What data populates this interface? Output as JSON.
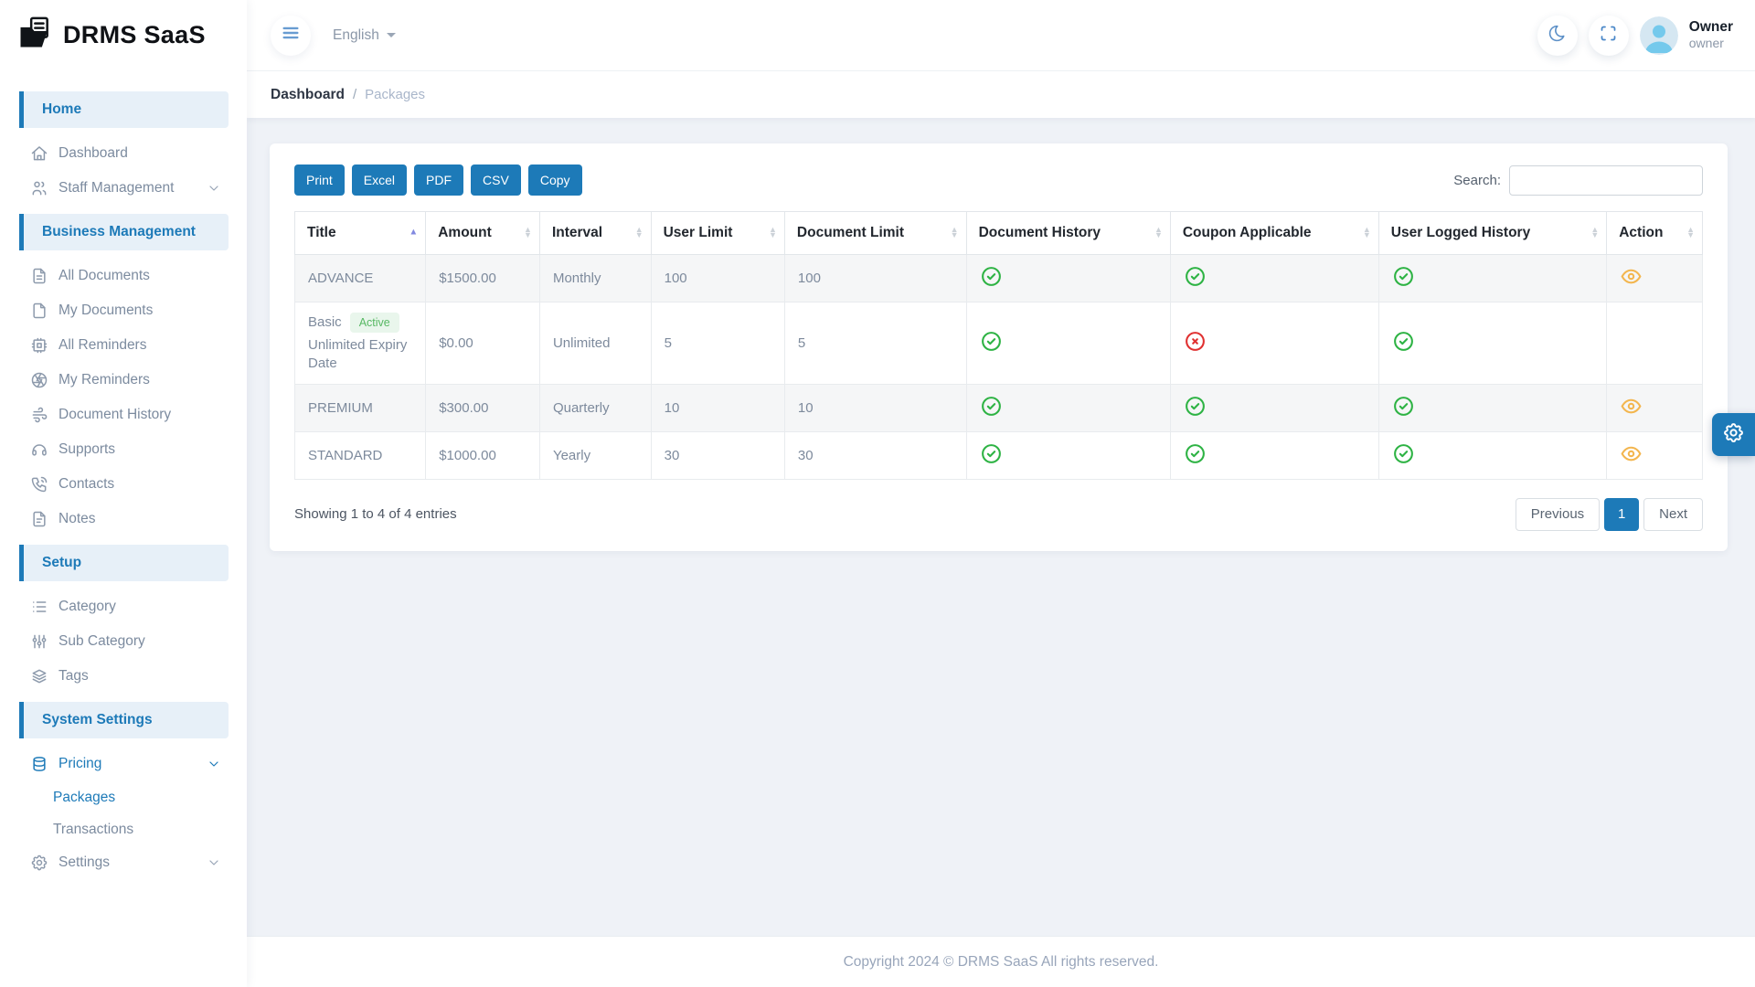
{
  "brand": {
    "name": "DRMS SaaS"
  },
  "topbar": {
    "language_label": "English",
    "user_name": "Owner",
    "user_role": "owner"
  },
  "breadcrumb": {
    "root": "Dashboard",
    "separator": "/",
    "current": "Packages"
  },
  "sidebar": {
    "items": [
      {
        "type": "section",
        "label": "Home"
      },
      {
        "type": "item",
        "icon": "home-icon",
        "label": "Dashboard"
      },
      {
        "type": "item",
        "icon": "users-icon",
        "label": "Staff Management",
        "chevron": true
      },
      {
        "type": "section",
        "label": "Business Management"
      },
      {
        "type": "item",
        "icon": "file-text-icon",
        "label": "All Documents"
      },
      {
        "type": "item",
        "icon": "file-icon",
        "label": "My Documents"
      },
      {
        "type": "item",
        "icon": "cpu-icon",
        "label": "All Reminders"
      },
      {
        "type": "item",
        "icon": "aperture-icon",
        "label": "My Reminders"
      },
      {
        "type": "item",
        "icon": "wind-icon",
        "label": "Document History"
      },
      {
        "type": "item",
        "icon": "headphones-icon",
        "label": "Supports"
      },
      {
        "type": "item",
        "icon": "phone-icon",
        "label": "Contacts"
      },
      {
        "type": "item",
        "icon": "note-icon",
        "label": "Notes"
      },
      {
        "type": "section",
        "label": "Setup"
      },
      {
        "type": "item",
        "icon": "list-icon",
        "label": "Category"
      },
      {
        "type": "item",
        "icon": "sliders-icon",
        "label": "Sub Category"
      },
      {
        "type": "item",
        "icon": "layers-icon",
        "label": "Tags"
      },
      {
        "type": "section",
        "label": "System Settings"
      },
      {
        "type": "item",
        "icon": "database-icon",
        "label": "Pricing",
        "chevron": true,
        "active": true
      },
      {
        "type": "subitem",
        "label": "Packages",
        "active": true
      },
      {
        "type": "subitem",
        "label": "Transactions"
      },
      {
        "type": "item",
        "icon": "gear-icon",
        "label": "Settings",
        "chevron": true
      }
    ]
  },
  "packages_card": {
    "export_buttons": [
      {
        "label": "Print"
      },
      {
        "label": "Excel"
      },
      {
        "label": "PDF"
      },
      {
        "label": "CSV"
      },
      {
        "label": "Copy"
      }
    ],
    "search": {
      "label": "Search:",
      "value": ""
    },
    "table": {
      "columns": [
        {
          "label": "Title",
          "sort": "asc"
        },
        {
          "label": "Amount",
          "sort": "both"
        },
        {
          "label": "Interval",
          "sort": "both"
        },
        {
          "label": "User Limit",
          "sort": "both"
        },
        {
          "label": "Document Limit",
          "sort": "both"
        },
        {
          "label": "Document History",
          "sort": "both"
        },
        {
          "label": "Coupon Applicable",
          "sort": "both"
        },
        {
          "label": "User Logged History",
          "sort": "both"
        },
        {
          "label": "Action",
          "sort": "both"
        }
      ],
      "rows": [
        {
          "title": "ADVANCE",
          "badge": "",
          "title_note": "",
          "amount": "$1500.00",
          "interval": "Monthly",
          "user_limit": "100",
          "document_limit": "100",
          "document_history": "check",
          "coupon_applicable": "check",
          "user_logged_history": "check",
          "action": "eye"
        },
        {
          "title": "Basic",
          "badge": "Active",
          "title_note": "Unlimited Expiry Date",
          "amount": "$0.00",
          "interval": "Unlimited",
          "user_limit": "5",
          "document_limit": "5",
          "document_history": "check",
          "coupon_applicable": "cross",
          "user_logged_history": "check",
          "action": ""
        },
        {
          "title": "PREMIUM",
          "badge": "",
          "title_note": "",
          "amount": "$300.00",
          "interval": "Quarterly",
          "user_limit": "10",
          "document_limit": "10",
          "document_history": "check",
          "coupon_applicable": "check",
          "user_logged_history": "check",
          "action": "eye"
        },
        {
          "title": "STANDARD",
          "badge": "",
          "title_note": "",
          "amount": "$1000.00",
          "interval": "Yearly",
          "user_limit": "30",
          "document_limit": "30",
          "document_history": "check",
          "coupon_applicable": "check",
          "user_logged_history": "check",
          "action": "eye"
        }
      ]
    },
    "entries_info": "Showing 1 to 4 of 4 entries",
    "pagination": {
      "previous_label": "Previous",
      "current_page": "1",
      "next_label": "Next"
    }
  },
  "footer": {
    "copyright": "Copyright 2024 © DRMS SaaS All rights reserved."
  },
  "colors": {
    "accent": "#1d7ab8",
    "success": "#2eb344",
    "danger": "#e03131",
    "warning": "#f3b64f",
    "badge_bg": "#e9f6ec",
    "badge_text": "#57b863"
  }
}
